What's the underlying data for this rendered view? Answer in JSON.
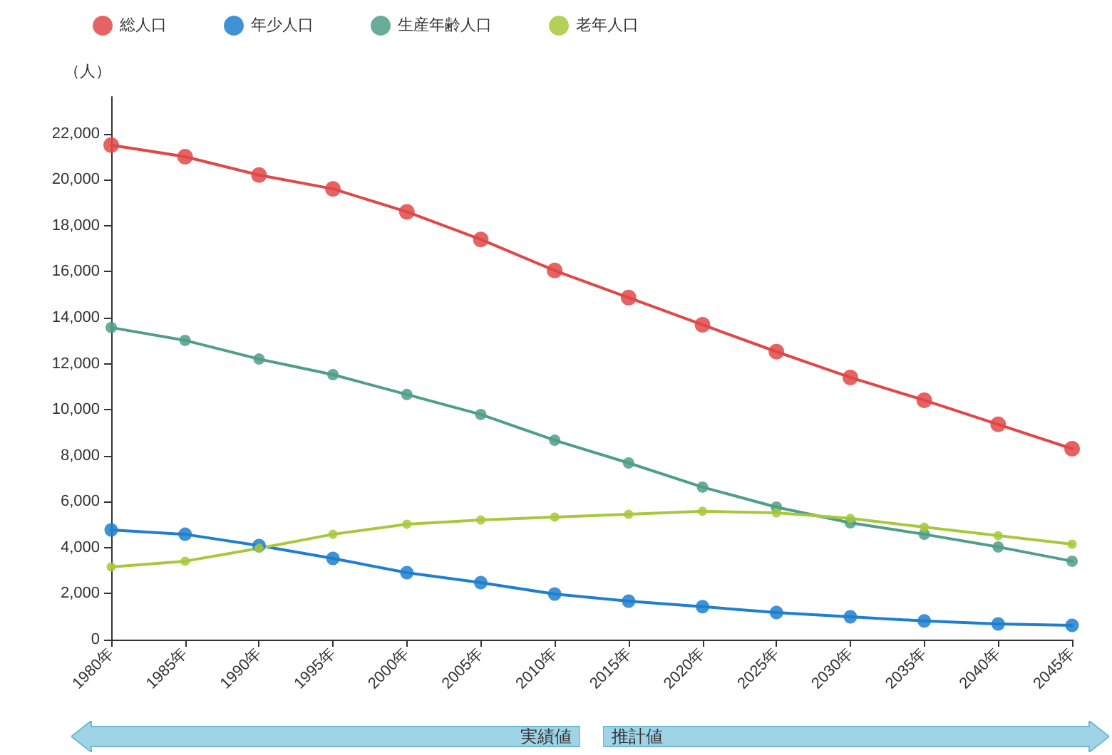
{
  "chart_data": {
    "type": "line",
    "ylabel": "（人）",
    "categories": [
      "1980年",
      "1985年",
      "1990年",
      "1995年",
      "2000年",
      "2005年",
      "2010年",
      "2015年",
      "2020年",
      "2025年",
      "2030年",
      "2035年",
      "2040年",
      "2045年"
    ],
    "series": [
      {
        "name": "総人口",
        "color": "#e04848",
        "values": [
          21500,
          21000,
          20200,
          19600,
          18600,
          17400,
          16050,
          14870,
          13690,
          12520,
          11400,
          10410,
          9360,
          8300
        ]
      },
      {
        "name": "年少人口",
        "color": "#1f7fcf",
        "values": [
          4770,
          4580,
          4090,
          3530,
          2910,
          2480,
          1980,
          1670,
          1430,
          1180,
          990,
          810,
          680,
          620
        ]
      },
      {
        "name": "生産年齢人口",
        "color": "#4f9e88",
        "values": [
          13570,
          13010,
          12200,
          11520,
          10660,
          9790,
          8670,
          7680,
          6630,
          5760,
          5080,
          4580,
          4030,
          3410
        ]
      },
      {
        "name": "老年人口",
        "color": "#a8c83c",
        "values": [
          3160,
          3410,
          3970,
          4580,
          5020,
          5200,
          5330,
          5450,
          5580,
          5510,
          5270,
          4890,
          4520,
          4150
        ]
      }
    ],
    "ylim": [
      0,
      23600
    ],
    "yticks": [
      0,
      {
        "value": 2000,
        "label": "2,000"
      },
      {
        "value": 4000,
        "label": "4,000"
      },
      {
        "value": 6000,
        "label": "6,000"
      },
      {
        "value": 8000,
        "label": "8,000"
      },
      {
        "value": 10000,
        "label": "10,000"
      },
      {
        "value": 12000,
        "label": "12,000"
      },
      {
        "value": 14000,
        "label": "14,000"
      },
      {
        "value": 16000,
        "label": "16,000"
      },
      {
        "value": 18000,
        "label": "18,000"
      },
      {
        "value": 20000,
        "label": "20,000"
      },
      {
        "value": 22000,
        "label": "22,000"
      }
    ],
    "grid": false,
    "legend": "top left",
    "marker": "circle",
    "line_style": "solid",
    "annotations": [
      "実績値",
      "推計値"
    ]
  }
}
